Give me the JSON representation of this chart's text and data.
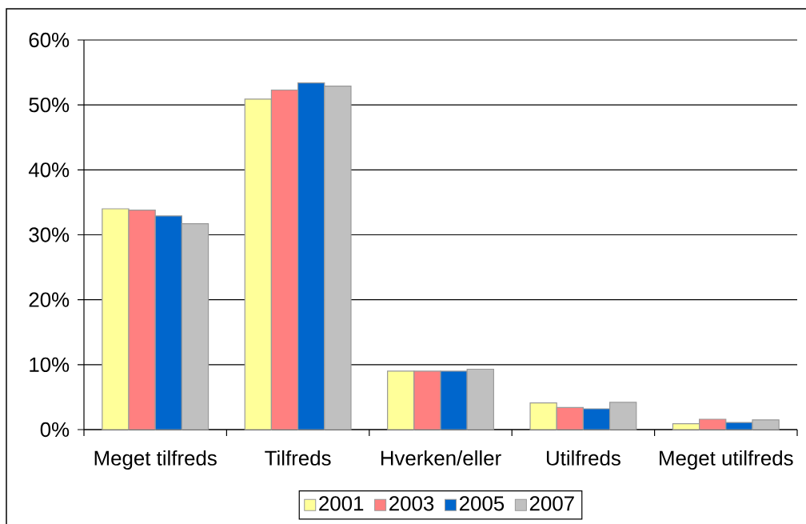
{
  "chart_data": {
    "type": "bar",
    "categories": [
      "Meget tilfreds",
      "Tilfreds",
      "Hverken/eller",
      "Utilfreds",
      "Meget utilfreds"
    ],
    "series": [
      {
        "name": "2001",
        "color": "#ffff99",
        "values": [
          34.0,
          50.9,
          9.0,
          4.1,
          0.9
        ]
      },
      {
        "name": "2003",
        "color": "#ff8080",
        "values": [
          33.8,
          52.3,
          9.0,
          3.4,
          1.6
        ]
      },
      {
        "name": "2005",
        "color": "#0066cc",
        "values": [
          32.9,
          53.4,
          9.0,
          3.2,
          1.1
        ]
      },
      {
        "name": "2007",
        "color": "#c0c0c0",
        "values": [
          31.7,
          52.9,
          9.3,
          4.2,
          1.5
        ]
      }
    ],
    "ylim": [
      0,
      60
    ],
    "yticks": [
      {
        "value": 0,
        "label": "0%"
      },
      {
        "value": 10,
        "label": "10%"
      },
      {
        "value": 20,
        "label": "20%"
      },
      {
        "value": 30,
        "label": "30%"
      },
      {
        "value": 40,
        "label": "40%"
      },
      {
        "value": 50,
        "label": "50%"
      },
      {
        "value": 60,
        "label": "60%"
      }
    ],
    "grid": "y",
    "legend": "bottom"
  }
}
